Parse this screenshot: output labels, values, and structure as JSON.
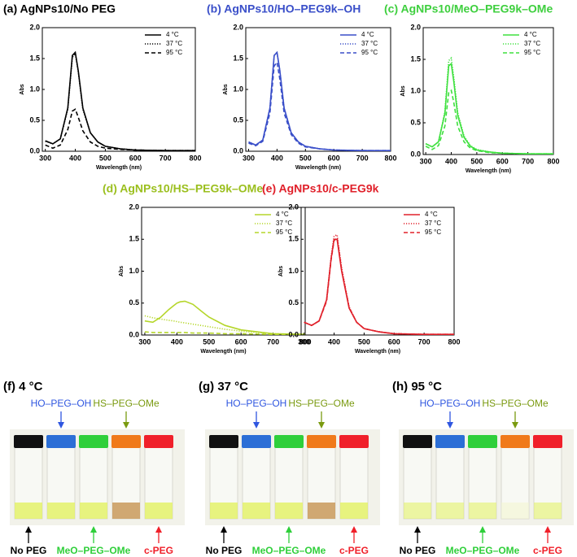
{
  "chart_data": [
    {
      "type": "line",
      "title": "(a) AgNPs10/No PEG",
      "title_color": "#000000",
      "xlabel": "Wavelength (nm)",
      "ylabel": "Abs",
      "x": [
        300,
        325,
        350,
        375,
        390,
        400,
        410,
        425,
        450,
        475,
        500,
        550,
        600,
        700,
        800
      ],
      "series": [
        {
          "name": "4 °C",
          "color": "#000000",
          "dash": "solid",
          "values": [
            0.17,
            0.12,
            0.2,
            0.7,
            1.55,
            1.6,
            1.3,
            0.7,
            0.3,
            0.15,
            0.08,
            0.04,
            0.02,
            0.01,
            0.01
          ]
        },
        {
          "name": "37 °C",
          "color": "#000000",
          "dash": "dotted",
          "values": [
            0.16,
            0.12,
            0.2,
            0.68,
            1.52,
            1.58,
            1.28,
            0.68,
            0.3,
            0.15,
            0.08,
            0.04,
            0.02,
            0.01,
            0.01
          ]
        },
        {
          "name": "95 °C",
          "color": "#000000",
          "dash": "dashed",
          "values": [
            0.1,
            0.05,
            0.1,
            0.35,
            0.65,
            0.68,
            0.55,
            0.33,
            0.15,
            0.08,
            0.05,
            0.03,
            0.02,
            0.01,
            0.01
          ]
        }
      ],
      "xlim": [
        290,
        800
      ],
      "ylim": [
        0,
        2
      ],
      "xticks": [
        300,
        400,
        500,
        600,
        700,
        800
      ],
      "yticks": [
        {
          "value": 0,
          "label": "0.0"
        },
        {
          "value": 0.5,
          "label": "0.5"
        },
        {
          "value": 1,
          "label": "1.0"
        },
        {
          "value": 1.5,
          "label": "1.5"
        },
        {
          "value": 2,
          "label": "2.0"
        }
      ]
    },
    {
      "type": "line",
      "title": "(b) AgNPs10/HO–PEG9k–OH",
      "title_color": "#3a4fc9",
      "xlabel": "Wavelength (nm)",
      "ylabel": "Abs",
      "x": [
        300,
        325,
        350,
        375,
        390,
        400,
        410,
        425,
        450,
        475,
        500,
        550,
        600,
        700,
        800
      ],
      "series": [
        {
          "name": "4 °C",
          "color": "#3a4fc9",
          "dash": "solid",
          "values": [
            0.15,
            0.1,
            0.18,
            0.7,
            1.55,
            1.6,
            1.3,
            0.7,
            0.3,
            0.15,
            0.08,
            0.04,
            0.02,
            0.01,
            0.01
          ]
        },
        {
          "name": "37 °C",
          "color": "#3a4fc9",
          "dash": "dotted",
          "values": [
            0.15,
            0.1,
            0.18,
            0.7,
            1.55,
            1.6,
            1.3,
            0.7,
            0.3,
            0.15,
            0.08,
            0.04,
            0.02,
            0.01,
            0.01
          ]
        },
        {
          "name": "95 °C",
          "color": "#3a4fc9",
          "dash": "dashed",
          "values": [
            0.13,
            0.09,
            0.16,
            0.62,
            1.38,
            1.44,
            1.16,
            0.62,
            0.27,
            0.13,
            0.07,
            0.04,
            0.02,
            0.01,
            0.01
          ]
        }
      ],
      "xlim": [
        290,
        800
      ],
      "ylim": [
        0,
        2
      ],
      "xticks": [
        300,
        400,
        500,
        600,
        700,
        800
      ],
      "yticks": [
        {
          "value": 0,
          "label": "0.0"
        },
        {
          "value": 0.5,
          "label": "0.5"
        },
        {
          "value": 1,
          "label": "1.0"
        },
        {
          "value": 1.5,
          "label": "1.5"
        },
        {
          "value": 2,
          "label": "2.0"
        }
      ]
    },
    {
      "type": "line",
      "title": "(c) AgNPs10/MeO–PEG9k–OMe",
      "title_color": "#3ecf3e",
      "xlabel": "Wavelength (nm)",
      "ylabel": "Abs",
      "x": [
        300,
        325,
        350,
        375,
        390,
        400,
        410,
        425,
        450,
        475,
        500,
        550,
        600,
        700,
        800
      ],
      "series": [
        {
          "name": "4 °C",
          "color": "#3ee03e",
          "dash": "solid",
          "values": [
            0.17,
            0.12,
            0.2,
            0.65,
            1.4,
            1.43,
            1.15,
            0.62,
            0.27,
            0.13,
            0.07,
            0.04,
            0.02,
            0.01,
            0.01
          ]
        },
        {
          "name": "37 °C",
          "color": "#3ee03e",
          "dash": "dotted",
          "values": [
            0.17,
            0.12,
            0.2,
            0.68,
            1.48,
            1.52,
            1.22,
            0.66,
            0.29,
            0.14,
            0.08,
            0.04,
            0.02,
            0.01,
            0.01
          ]
        },
        {
          "name": "95 °C",
          "color": "#3ee03e",
          "dash": "dashed",
          "values": [
            0.13,
            0.08,
            0.14,
            0.45,
            0.98,
            1.01,
            0.82,
            0.45,
            0.2,
            0.1,
            0.06,
            0.03,
            0.02,
            0.01,
            0.01
          ]
        }
      ],
      "xlim": [
        290,
        800
      ],
      "ylim": [
        0,
        2
      ],
      "xticks": [
        300,
        400,
        500,
        600,
        700,
        800
      ],
      "yticks": [
        {
          "value": 0,
          "label": "0.0"
        },
        {
          "value": 0.5,
          "label": "0.5"
        },
        {
          "value": 1,
          "label": "1.0"
        },
        {
          "value": 1.5,
          "label": "1.5"
        },
        {
          "value": 2,
          "label": "2.0"
        }
      ]
    },
    {
      "type": "line",
      "title": "(d) AgNPs10/HS–PEG9k–OMe",
      "title_color": "#9bbf1e",
      "xlabel": "Wavelength (nm)",
      "ylabel": "Abs",
      "x": [
        300,
        325,
        350,
        375,
        390,
        400,
        410,
        425,
        450,
        475,
        500,
        550,
        600,
        700,
        800
      ],
      "series": [
        {
          "name": "4 °C",
          "color": "#b5d62a",
          "dash": "solid",
          "values": [
            0.22,
            0.2,
            0.28,
            0.4,
            0.46,
            0.5,
            0.52,
            0.53,
            0.48,
            0.38,
            0.28,
            0.15,
            0.08,
            0.02,
            0.01
          ]
        },
        {
          "name": "37 °C",
          "color": "#b5d62a",
          "dash": "dotted",
          "values": [
            0.3,
            0.27,
            0.25,
            0.23,
            0.22,
            0.21,
            0.2,
            0.19,
            0.17,
            0.15,
            0.13,
            0.09,
            0.06,
            0.02,
            0.01
          ]
        },
        {
          "name": "95 °C",
          "color": "#b5d62a",
          "dash": "dashed",
          "values": [
            0.05,
            0.04,
            0.04,
            0.04,
            0.04,
            0.04,
            0.04,
            0.04,
            0.03,
            0.03,
            0.03,
            0.02,
            0.02,
            0.01,
            0.01
          ]
        }
      ],
      "xlim": [
        290,
        800
      ],
      "ylim": [
        0,
        2
      ],
      "xticks": [
        300,
        400,
        500,
        600,
        700,
        800
      ],
      "yticks": [
        {
          "value": 0,
          "label": "0.0"
        },
        {
          "value": 0.5,
          "label": "0.5"
        },
        {
          "value": 1,
          "label": "1.0"
        },
        {
          "value": 1.5,
          "label": "1.5"
        },
        {
          "value": 2,
          "label": "2.0"
        }
      ]
    },
    {
      "type": "line",
      "title": "(e) AgNPs10/c-PEG9k",
      "title_color": "#e0202a",
      "xlabel": "Wavelength (nm)",
      "ylabel": "Abs",
      "x": [
        300,
        325,
        350,
        375,
        390,
        400,
        410,
        425,
        450,
        475,
        500,
        550,
        600,
        700,
        800
      ],
      "series": [
        {
          "name": "4 °C",
          "color": "#e0202a",
          "dash": "solid",
          "values": [
            0.2,
            0.15,
            0.22,
            0.55,
            1.2,
            1.5,
            1.5,
            1.0,
            0.42,
            0.2,
            0.1,
            0.05,
            0.02,
            0.01,
            0.01
          ]
        },
        {
          "name": "37 °C",
          "color": "#e0202a",
          "dash": "dotted",
          "values": [
            0.2,
            0.15,
            0.22,
            0.55,
            1.22,
            1.55,
            1.57,
            1.05,
            0.44,
            0.2,
            0.1,
            0.05,
            0.02,
            0.01,
            0.01
          ]
        },
        {
          "name": "95 °C",
          "color": "#e0202a",
          "dash": "dashed",
          "values": [
            0.2,
            0.15,
            0.22,
            0.53,
            1.18,
            1.48,
            1.52,
            1.02,
            0.43,
            0.2,
            0.1,
            0.05,
            0.02,
            0.01,
            0.01
          ]
        }
      ],
      "xlim": [
        290,
        800
      ],
      "ylim": [
        0,
        2
      ],
      "xticks": [
        300,
        400,
        500,
        600,
        700,
        800
      ],
      "yticks": [
        {
          "value": 0,
          "label": "0.0"
        },
        {
          "value": 0.5,
          "label": "0.5"
        },
        {
          "value": 1,
          "label": "1.0"
        },
        {
          "value": 1.5,
          "label": "1.5"
        },
        {
          "value": 2,
          "label": "2.0"
        }
      ]
    }
  ],
  "photo_panels": [
    {
      "title": "(f) 4 °C",
      "top_labels": [
        "HO–PEG–OH",
        "HS–PEG–OMe"
      ],
      "bottom_labels": [
        "No PEG",
        "MeO–PEG–OMe",
        "c-PEG"
      ]
    },
    {
      "title": "(g) 37 °C",
      "top_labels": [
        "HO–PEG–OH",
        "HS–PEG–OMe"
      ],
      "bottom_labels": [
        "No PEG",
        "MeO–PEG–OMe",
        "c-PEG"
      ]
    },
    {
      "title": "(h) 95 °C",
      "top_labels": [
        "HO–PEG–OH",
        "HS–PEG–OMe"
      ],
      "bottom_labels": [
        "No PEG",
        "MeO–PEG–OMe",
        "c-PEG"
      ]
    }
  ]
}
